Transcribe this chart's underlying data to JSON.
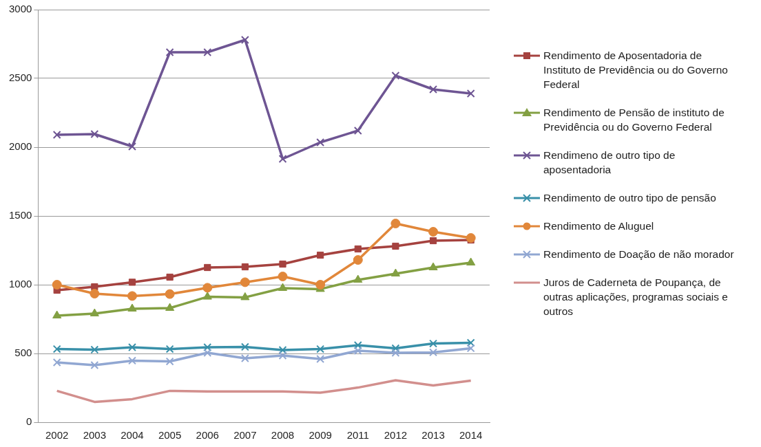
{
  "chart_data": {
    "type": "line",
    "categories": [
      "2002",
      "2003",
      "2004",
      "2005",
      "2006",
      "2007",
      "2008",
      "2009",
      "2011",
      "2012",
      "2013",
      "2014"
    ],
    "ylim": [
      0,
      3000
    ],
    "yticks": [
      0,
      500,
      1000,
      1500,
      2000,
      2500,
      3000
    ],
    "grid": "y",
    "legend": "right",
    "line_style": "solid",
    "series": [
      {
        "name": "Rendimento de Aposentadoria de Instituto de Previdência ou do Governo Federal",
        "color": "#a5423f",
        "marker": "square",
        "values": [
          960,
          985,
          1018,
          1055,
          1125,
          1130,
          1150,
          1215,
          1260,
          1280,
          1320,
          1325
        ]
      },
      {
        "name": "Rendimento de Pensão de instituto de Previdência ou do Governo Federal",
        "color": "#83a043",
        "marker": "triangle",
        "values": [
          775,
          790,
          825,
          830,
          912,
          908,
          975,
          968,
          1035,
          1080,
          1125,
          1160
        ]
      },
      {
        "name": "Rendimeno de outro tipo de aposentadoria",
        "color": "#6e5593",
        "marker": "cross",
        "values": [
          2090,
          2095,
          2005,
          2690,
          2690,
          2780,
          1915,
          2035,
          2120,
          2520,
          2420,
          2390
        ]
      },
      {
        "name": "Rendimento de outro tipo de pensão",
        "color": "#3990a9",
        "marker": "cross",
        "values": [
          532,
          528,
          545,
          532,
          545,
          548,
          525,
          532,
          560,
          538,
          572,
          578
        ]
      },
      {
        "name": "Rendimento de Aluguel",
        "color": "#e1873a",
        "marker": "circle",
        "values": [
          1000,
          935,
          918,
          932,
          978,
          1018,
          1060,
          1000,
          1180,
          1445,
          1385,
          1340
        ]
      },
      {
        "name": "Rendimento de Doação de não morador",
        "color": "#91a7d2",
        "marker": "cross",
        "values": [
          435,
          415,
          448,
          442,
          505,
          465,
          485,
          460,
          520,
          505,
          508,
          538
        ]
      },
      {
        "name": "Juros de Caderneta de Poupança, de outras aplicações, programas sociais e outros",
        "color": "#d28f8d",
        "marker": "none",
        "values": [
          228,
          148,
          168,
          228,
          224,
          224,
          224,
          215,
          252,
          305,
          268,
          302
        ]
      }
    ]
  }
}
